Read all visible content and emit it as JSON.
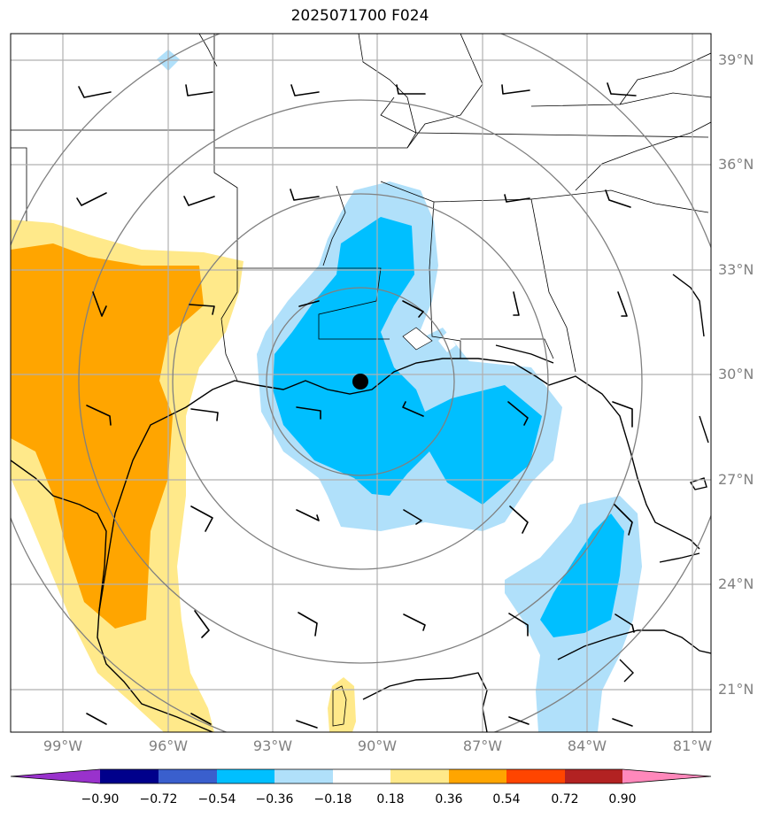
{
  "title": "2025071700 F024",
  "map": {
    "lat_labels": [
      "39°N",
      "36°N",
      "33°N",
      "30°N",
      "27°N",
      "24°N",
      "21°N"
    ],
    "lon_labels": [
      "99°W",
      "96°W",
      "93°W",
      "90°W",
      "87°W",
      "84°W",
      "81°W"
    ],
    "storm_marker": "filled-black-circle",
    "range_rings": "concentric-gray-circles",
    "wind_barbs": "black-wind-barbs"
  },
  "colorbar": {
    "labels": [
      "−0.90",
      "−0.72",
      "−0.54",
      "−0.36",
      "−0.18",
      "0.18",
      "0.36",
      "0.54",
      "0.72",
      "0.90"
    ],
    "colors": [
      "#9932cc",
      "#00008b",
      "#3a5fcd",
      "#00bfff",
      "#b0e0fa",
      "#ffffff",
      "#ffe98a",
      "#ffa500",
      "#ff4500",
      "#b22222",
      "#ff88bb"
    ]
  }
}
